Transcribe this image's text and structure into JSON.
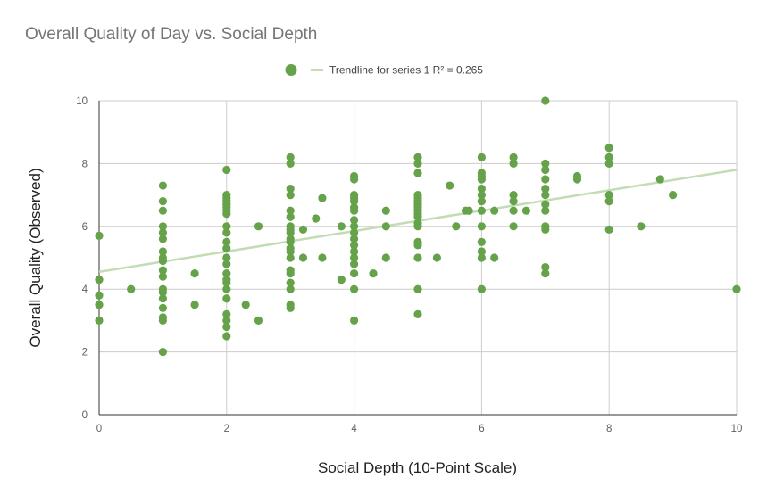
{
  "chart_data": {
    "type": "scatter",
    "title": "Overall Quality of Day vs. Social Depth",
    "xlabel": "Social Depth (10-Point Scale)",
    "ylabel": "Overall Quality (Observed)",
    "xlim": [
      0,
      10
    ],
    "ylim": [
      0,
      10
    ],
    "x_ticks": [
      "0",
      "2",
      "4",
      "6",
      "8",
      "10"
    ],
    "y_ticks": [
      "0",
      "2",
      "4",
      "6",
      "8",
      "10"
    ],
    "grid": true,
    "legend_position": "top",
    "legend": {
      "trendline_label": "Trendline for series 1 R² = 0.265"
    },
    "colors": {
      "point": "#65a24a",
      "trendline": "#c2dcb4",
      "grid": "#cccccc",
      "axis": "#333333"
    },
    "trendline": {
      "intercept": 4.55,
      "slope": 0.325,
      "r_squared": 0.265
    },
    "series": [
      {
        "points": [
          [
            0,
            5.7
          ],
          [
            0,
            4.3
          ],
          [
            0,
            3.8
          ],
          [
            0,
            3.5
          ],
          [
            0,
            3.0
          ],
          [
            0.5,
            4.0
          ],
          [
            1,
            7.3
          ],
          [
            1,
            6.8
          ],
          [
            1,
            6.5
          ],
          [
            1,
            6.0
          ],
          [
            1,
            5.8
          ],
          [
            1,
            5.6
          ],
          [
            1,
            5.2
          ],
          [
            1,
            5.0
          ],
          [
            1,
            4.9
          ],
          [
            1,
            4.6
          ],
          [
            1,
            4.4
          ],
          [
            1,
            4.0
          ],
          [
            1,
            3.9
          ],
          [
            1,
            3.7
          ],
          [
            1,
            3.4
          ],
          [
            1,
            3.1
          ],
          [
            1,
            3.0
          ],
          [
            1,
            2.0
          ],
          [
            1.5,
            4.5
          ],
          [
            1.5,
            3.5
          ],
          [
            2,
            7.8
          ],
          [
            2,
            7.0
          ],
          [
            2,
            6.9
          ],
          [
            2,
            6.8
          ],
          [
            2,
            6.7
          ],
          [
            2,
            6.6
          ],
          [
            2,
            6.5
          ],
          [
            2,
            6.4
          ],
          [
            2,
            6.0
          ],
          [
            2,
            5.8
          ],
          [
            2,
            5.5
          ],
          [
            2,
            5.3
          ],
          [
            2,
            5.0
          ],
          [
            2,
            4.8
          ],
          [
            2,
            4.5
          ],
          [
            2,
            4.3
          ],
          [
            2,
            4.2
          ],
          [
            2,
            4.0
          ],
          [
            2,
            3.7
          ],
          [
            2,
            3.2
          ],
          [
            2,
            3.0
          ],
          [
            2,
            2.8
          ],
          [
            2,
            2.5
          ],
          [
            2.3,
            3.5
          ],
          [
            2.5,
            6.0
          ],
          [
            2.5,
            3.0
          ],
          [
            3,
            8.2
          ],
          [
            3,
            8.0
          ],
          [
            3,
            7.2
          ],
          [
            3,
            7.0
          ],
          [
            3,
            6.5
          ],
          [
            3,
            6.3
          ],
          [
            3,
            6.0
          ],
          [
            3,
            5.9
          ],
          [
            3,
            5.8
          ],
          [
            3,
            5.6
          ],
          [
            3,
            5.5
          ],
          [
            3,
            5.3
          ],
          [
            3,
            5.2
          ],
          [
            3,
            5.0
          ],
          [
            3,
            4.6
          ],
          [
            3,
            4.5
          ],
          [
            3,
            4.2
          ],
          [
            3,
            4.0
          ],
          [
            3,
            3.5
          ],
          [
            3,
            3.4
          ],
          [
            3.2,
            5.9
          ],
          [
            3.2,
            5.0
          ],
          [
            3.4,
            6.25
          ],
          [
            3.5,
            6.9
          ],
          [
            3.5,
            5.0
          ],
          [
            3.8,
            6.0
          ],
          [
            3.8,
            4.3
          ],
          [
            4,
            7.6
          ],
          [
            4,
            7.5
          ],
          [
            4,
            7.0
          ],
          [
            4,
            6.9
          ],
          [
            4,
            6.8
          ],
          [
            4,
            6.6
          ],
          [
            4,
            6.5
          ],
          [
            4,
            6.2
          ],
          [
            4,
            6.0
          ],
          [
            4,
            5.8
          ],
          [
            4,
            5.6
          ],
          [
            4,
            5.4
          ],
          [
            4,
            5.2
          ],
          [
            4,
            5.0
          ],
          [
            4,
            4.8
          ],
          [
            4,
            4.5
          ],
          [
            4,
            4.0
          ],
          [
            4,
            3.0
          ],
          [
            4.3,
            4.5
          ],
          [
            4.5,
            6.5
          ],
          [
            4.5,
            6.0
          ],
          [
            4.5,
            5.0
          ],
          [
            5,
            8.2
          ],
          [
            5,
            8.0
          ],
          [
            5,
            7.7
          ],
          [
            5,
            7.0
          ],
          [
            5,
            6.9
          ],
          [
            5,
            6.8
          ],
          [
            5,
            6.7
          ],
          [
            5,
            6.6
          ],
          [
            5,
            6.5
          ],
          [
            5,
            6.4
          ],
          [
            5,
            6.3
          ],
          [
            5,
            6.1
          ],
          [
            5,
            6.0
          ],
          [
            5,
            5.5
          ],
          [
            5,
            5.4
          ],
          [
            5,
            5.0
          ],
          [
            5,
            4.0
          ],
          [
            5,
            3.2
          ],
          [
            5.3,
            5.0
          ],
          [
            5.5,
            7.3
          ],
          [
            5.6,
            6.0
          ],
          [
            5.75,
            6.5
          ],
          [
            5.8,
            6.5
          ],
          [
            6,
            8.2
          ],
          [
            6,
            7.7
          ],
          [
            6,
            7.6
          ],
          [
            6,
            7.5
          ],
          [
            6,
            7.2
          ],
          [
            6,
            7.0
          ],
          [
            6,
            6.8
          ],
          [
            6,
            6.5
          ],
          [
            6,
            6.0
          ],
          [
            6,
            5.5
          ],
          [
            6,
            5.2
          ],
          [
            6,
            5.0
          ],
          [
            6,
            4.0
          ],
          [
            6.2,
            6.5
          ],
          [
            6.2,
            5.0
          ],
          [
            6.5,
            8.2
          ],
          [
            6.5,
            8.0
          ],
          [
            6.5,
            7.0
          ],
          [
            6.5,
            6.8
          ],
          [
            6.5,
            6.5
          ],
          [
            6.5,
            6.0
          ],
          [
            6.7,
            6.5
          ],
          [
            7,
            10.0
          ],
          [
            7,
            8.0
          ],
          [
            7,
            7.8
          ],
          [
            7,
            7.5
          ],
          [
            7,
            7.2
          ],
          [
            7,
            7.0
          ],
          [
            7,
            6.7
          ],
          [
            7,
            6.5
          ],
          [
            7,
            6.0
          ],
          [
            7,
            5.9
          ],
          [
            7,
            4.7
          ],
          [
            7,
            4.5
          ],
          [
            7.5,
            7.6
          ],
          [
            7.5,
            7.5
          ],
          [
            8,
            8.5
          ],
          [
            8,
            8.2
          ],
          [
            8,
            8.0
          ],
          [
            8,
            7.0
          ],
          [
            8,
            6.8
          ],
          [
            8,
            5.9
          ],
          [
            8.5,
            6.0
          ],
          [
            8.8,
            7.5
          ],
          [
            9,
            7.0
          ],
          [
            10,
            4.0
          ]
        ]
      }
    ]
  }
}
